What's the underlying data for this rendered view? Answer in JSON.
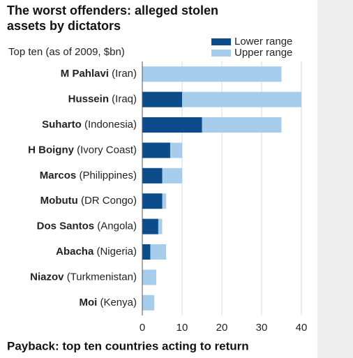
{
  "chart_data": {
    "type": "overlap-bar",
    "title": "The worst offenders: alleged stolen assets by dictators",
    "subtitle": "Top ten (as of 2009, $bn)",
    "footer": "Payback: top ten countries acting to return",
    "categories": [
      "M Pahlavi",
      "Hussein",
      "Suharto",
      "H Boigny",
      "Marcos",
      "Mobutu",
      "Dos Santos",
      "Abacha",
      "Niazov",
      "Moi"
    ],
    "countries": [
      "(Iran)",
      "(Iraq)",
      "(Indonesia)",
      "(Ivory Coast)",
      "(Philippines)",
      "(DR Congo)",
      "(Angola)",
      "(Nigeria)",
      "(Turkmenistan)",
      "(Kenya)"
    ],
    "series": [
      {
        "name": "Lower range",
        "color": "#0d4c8b",
        "values": [
          null,
          10,
          15,
          7,
          5,
          5,
          4,
          2,
          null,
          null
        ]
      },
      {
        "name": "Upper range",
        "color": "#a7cdec",
        "values": [
          35,
          40,
          35,
          10,
          10,
          6,
          5,
          6,
          3.5,
          3
        ]
      }
    ],
    "xlim": [
      0,
      40
    ],
    "xticks": [
      0,
      10,
      20,
      30,
      40
    ],
    "grid": true
  }
}
